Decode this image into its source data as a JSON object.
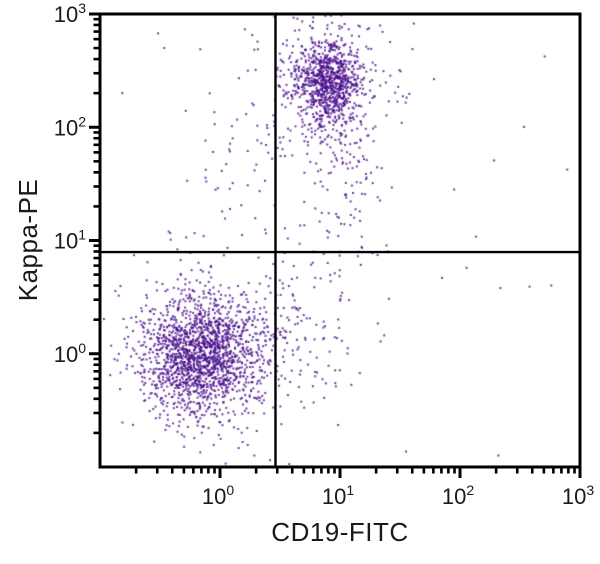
{
  "chart_data": {
    "type": "scatter",
    "subtype": "flow-cytometry-dot-plot",
    "title": "",
    "xlabel": "CD19-FITC",
    "ylabel": "Kappa-PE",
    "x_scale": "log",
    "y_scale": "log",
    "xlim": [
      0.1,
      1000
    ],
    "ylim": [
      0.1,
      1000
    ],
    "x_tick_exponents": [
      0,
      1,
      2,
      3
    ],
    "y_tick_exponents": [
      0,
      1,
      2,
      3
    ],
    "tick_base": "10",
    "grid": false,
    "legend": false,
    "dot_color": "#4a0e8c",
    "dot_alpha": 0.8,
    "axis_color": "#000000",
    "quadrant_gate": {
      "x": 2.9,
      "y": 7.9
    },
    "populations": [
      {
        "name": "kappa-negative-lymphocytes-core",
        "distribution": "gaussian",
        "approx_center": [
          0.7,
          0.95
        ],
        "center_log10": [
          -0.155,
          -0.02
        ],
        "sd_log10": [
          0.25,
          0.26
        ],
        "count": 1600,
        "seed": 11
      },
      {
        "name": "kappa-negative-lymphocytes-halo",
        "distribution": "gaussian",
        "approx_center": [
          0.76,
          1.2
        ],
        "center_log10": [
          -0.12,
          0.08
        ],
        "sd_log10": [
          0.38,
          0.5
        ],
        "count": 230,
        "seed": 22
      },
      {
        "name": "kappa-positive-b-cells-core",
        "distribution": "gaussian",
        "approx_center": [
          7.8,
          250
        ],
        "center_log10": [
          0.89,
          2.4
        ],
        "sd_log10": [
          0.13,
          0.17
        ],
        "count": 720,
        "seed": 33
      },
      {
        "name": "kappa-positive-b-cells-halo",
        "distribution": "gaussian",
        "approx_center": [
          8.1,
          230
        ],
        "center_log10": [
          0.91,
          2.36
        ],
        "sd_log10": [
          0.25,
          0.33
        ],
        "count": 330,
        "seed": 44
      },
      {
        "name": "intermediate-trail",
        "distribution": "gaussian",
        "approx_center": [
          10,
          40
        ],
        "center_log10": [
          1.0,
          1.6
        ],
        "sd_log10": [
          0.22,
          0.55
        ],
        "count": 140,
        "seed": 55
      },
      {
        "name": "lower-right-scatter",
        "distribution": "gaussian",
        "approx_center": [
          4.2,
          1.3
        ],
        "center_log10": [
          0.62,
          0.12
        ],
        "sd_log10": [
          0.3,
          0.38
        ],
        "count": 120,
        "seed": 66
      },
      {
        "name": "upper-left-scatter",
        "distribution": "gaussian",
        "approx_center": [
          1.9,
          50
        ],
        "center_log10": [
          0.28,
          1.7
        ],
        "sd_log10": [
          0.22,
          0.6
        ],
        "count": 55,
        "seed": 77
      },
      {
        "name": "background-sparse",
        "distribution": "uniform",
        "x_log10_range": [
          -0.9,
          2.9
        ],
        "y_log10_range": [
          -0.9,
          2.9
        ],
        "count": 45,
        "seed": 88
      }
    ]
  }
}
